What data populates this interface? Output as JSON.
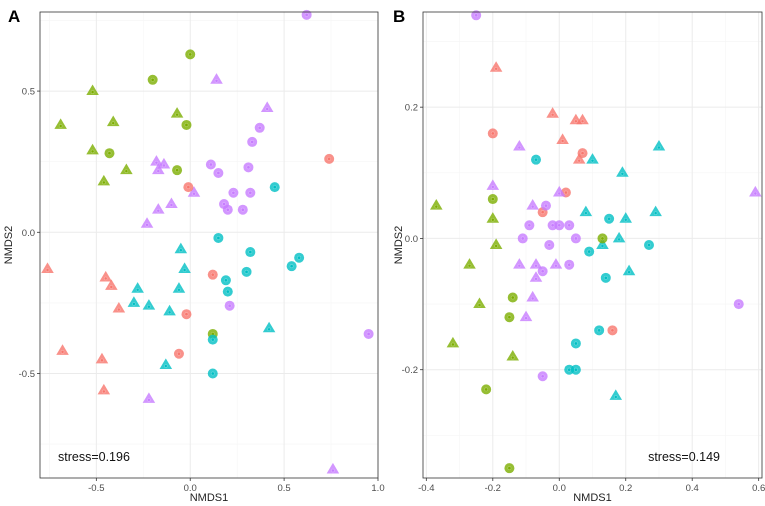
{
  "colors": {
    "red": "#F8766D",
    "green": "#7CAE00",
    "cyan": "#00BFC4",
    "purple": "#C77CFF"
  },
  "chart_data": [
    {
      "type": "scatter",
      "panel_label": "A",
      "xlabel": "NMDS1",
      "ylabel": "NMDS2",
      "xlim": [
        -0.8,
        1.0
      ],
      "ylim": [
        -0.87,
        0.78
      ],
      "xticks": [
        -0.5,
        0.0,
        0.5,
        1.0
      ],
      "xtick_labels": [
        "-0.5",
        "0.0",
        "0.5",
        "1.0"
      ],
      "yticks": [
        -0.5,
        0.0,
        0.5
      ],
      "ytick_labels": [
        "-0.5",
        "0.0",
        "0.5"
      ],
      "grid": true,
      "annotation": "stress=0.196",
      "annotation_position": "bottom-left",
      "points": [
        {
          "x": -0.52,
          "y": 0.5,
          "color": "green",
          "shape": "triangle"
        },
        {
          "x": -0.69,
          "y": 0.38,
          "color": "green",
          "shape": "triangle"
        },
        {
          "x": -0.52,
          "y": 0.29,
          "color": "green",
          "shape": "triangle"
        },
        {
          "x": -0.41,
          "y": 0.39,
          "color": "green",
          "shape": "triangle"
        },
        {
          "x": -0.46,
          "y": 0.18,
          "color": "green",
          "shape": "triangle"
        },
        {
          "x": -0.34,
          "y": 0.22,
          "color": "green",
          "shape": "triangle"
        },
        {
          "x": -0.07,
          "y": 0.42,
          "color": "green",
          "shape": "triangle"
        },
        {
          "x": -0.2,
          "y": 0.54,
          "color": "green",
          "shape": "circle"
        },
        {
          "x": 0.0,
          "y": 0.63,
          "color": "green",
          "shape": "circle"
        },
        {
          "x": -0.43,
          "y": 0.28,
          "color": "green",
          "shape": "circle"
        },
        {
          "x": -0.02,
          "y": 0.38,
          "color": "green",
          "shape": "circle"
        },
        {
          "x": -0.07,
          "y": 0.22,
          "color": "green",
          "shape": "circle"
        },
        {
          "x": 0.12,
          "y": -0.36,
          "color": "green",
          "shape": "circle"
        },
        {
          "x": 0.62,
          "y": 0.77,
          "color": "purple",
          "shape": "circle"
        },
        {
          "x": 0.14,
          "y": 0.54,
          "color": "purple",
          "shape": "triangle"
        },
        {
          "x": 0.41,
          "y": 0.44,
          "color": "purple",
          "shape": "triangle"
        },
        {
          "x": 0.37,
          "y": 0.37,
          "color": "purple",
          "shape": "circle"
        },
        {
          "x": 0.33,
          "y": 0.32,
          "color": "purple",
          "shape": "circle"
        },
        {
          "x": -0.18,
          "y": 0.25,
          "color": "purple",
          "shape": "triangle"
        },
        {
          "x": -0.14,
          "y": 0.24,
          "color": "purple",
          "shape": "triangle"
        },
        {
          "x": -0.17,
          "y": 0.22,
          "color": "purple",
          "shape": "triangle"
        },
        {
          "x": 0.11,
          "y": 0.24,
          "color": "purple",
          "shape": "circle"
        },
        {
          "x": 0.15,
          "y": 0.21,
          "color": "purple",
          "shape": "circle"
        },
        {
          "x": 0.31,
          "y": 0.23,
          "color": "purple",
          "shape": "circle"
        },
        {
          "x": 0.02,
          "y": 0.14,
          "color": "purple",
          "shape": "triangle"
        },
        {
          "x": -0.1,
          "y": 0.1,
          "color": "purple",
          "shape": "triangle"
        },
        {
          "x": -0.17,
          "y": 0.08,
          "color": "purple",
          "shape": "triangle"
        },
        {
          "x": 0.23,
          "y": 0.14,
          "color": "purple",
          "shape": "circle"
        },
        {
          "x": 0.32,
          "y": 0.14,
          "color": "purple",
          "shape": "circle"
        },
        {
          "x": 0.18,
          "y": 0.1,
          "color": "purple",
          "shape": "circle"
        },
        {
          "x": 0.2,
          "y": 0.08,
          "color": "purple",
          "shape": "circle"
        },
        {
          "x": 0.28,
          "y": 0.08,
          "color": "purple",
          "shape": "circle"
        },
        {
          "x": -0.23,
          "y": 0.03,
          "color": "purple",
          "shape": "triangle"
        },
        {
          "x": 0.21,
          "y": -0.26,
          "color": "purple",
          "shape": "circle"
        },
        {
          "x": -0.22,
          "y": -0.59,
          "color": "purple",
          "shape": "triangle"
        },
        {
          "x": 0.76,
          "y": -0.84,
          "color": "purple",
          "shape": "triangle"
        },
        {
          "x": 0.95,
          "y": -0.36,
          "color": "purple",
          "shape": "circle"
        },
        {
          "x": -0.76,
          "y": -0.13,
          "color": "red",
          "shape": "triangle"
        },
        {
          "x": -0.45,
          "y": -0.16,
          "color": "red",
          "shape": "triangle"
        },
        {
          "x": -0.42,
          "y": -0.19,
          "color": "red",
          "shape": "triangle"
        },
        {
          "x": -0.38,
          "y": -0.27,
          "color": "red",
          "shape": "triangle"
        },
        {
          "x": -0.68,
          "y": -0.42,
          "color": "red",
          "shape": "triangle"
        },
        {
          "x": -0.47,
          "y": -0.45,
          "color": "red",
          "shape": "triangle"
        },
        {
          "x": -0.46,
          "y": -0.56,
          "color": "red",
          "shape": "triangle"
        },
        {
          "x": -0.01,
          "y": 0.16,
          "color": "red",
          "shape": "circle"
        },
        {
          "x": 0.12,
          "y": -0.15,
          "color": "red",
          "shape": "circle"
        },
        {
          "x": -0.02,
          "y": -0.29,
          "color": "red",
          "shape": "circle"
        },
        {
          "x": -0.06,
          "y": -0.43,
          "color": "red",
          "shape": "circle"
        },
        {
          "x": 0.74,
          "y": 0.26,
          "color": "red",
          "shape": "circle"
        },
        {
          "x": 0.45,
          "y": 0.16,
          "color": "cyan",
          "shape": "circle"
        },
        {
          "x": 0.15,
          "y": -0.02,
          "color": "cyan",
          "shape": "circle"
        },
        {
          "x": 0.32,
          "y": -0.07,
          "color": "cyan",
          "shape": "circle"
        },
        {
          "x": 0.58,
          "y": -0.09,
          "color": "cyan",
          "shape": "circle"
        },
        {
          "x": 0.54,
          "y": -0.12,
          "color": "cyan",
          "shape": "circle"
        },
        {
          "x": 0.19,
          "y": -0.17,
          "color": "cyan",
          "shape": "circle"
        },
        {
          "x": 0.3,
          "y": -0.14,
          "color": "cyan",
          "shape": "circle"
        },
        {
          "x": 0.2,
          "y": -0.21,
          "color": "cyan",
          "shape": "circle"
        },
        {
          "x": 0.12,
          "y": -0.38,
          "color": "cyan",
          "shape": "circle"
        },
        {
          "x": 0.12,
          "y": -0.5,
          "color": "cyan",
          "shape": "circle"
        },
        {
          "x": -0.05,
          "y": -0.06,
          "color": "cyan",
          "shape": "triangle"
        },
        {
          "x": -0.03,
          "y": -0.13,
          "color": "cyan",
          "shape": "triangle"
        },
        {
          "x": -0.28,
          "y": -0.2,
          "color": "cyan",
          "shape": "triangle"
        },
        {
          "x": -0.06,
          "y": -0.2,
          "color": "cyan",
          "shape": "triangle"
        },
        {
          "x": -0.3,
          "y": -0.25,
          "color": "cyan",
          "shape": "triangle"
        },
        {
          "x": -0.22,
          "y": -0.26,
          "color": "cyan",
          "shape": "triangle"
        },
        {
          "x": -0.11,
          "y": -0.28,
          "color": "cyan",
          "shape": "triangle"
        },
        {
          "x": -0.13,
          "y": -0.47,
          "color": "cyan",
          "shape": "triangle"
        },
        {
          "x": 0.42,
          "y": -0.34,
          "color": "cyan",
          "shape": "triangle"
        }
      ]
    },
    {
      "type": "scatter",
      "panel_label": "B",
      "xlabel": "NMDS1",
      "ylabel": "NMDS2",
      "xlim": [
        -0.41,
        0.61
      ],
      "ylim": [
        -0.365,
        0.345
      ],
      "xticks": [
        -0.4,
        -0.2,
        0.0,
        0.2,
        0.4,
        0.6
      ],
      "xtick_labels": [
        "-0.4",
        "-0.2",
        "0.0",
        "0.2",
        "0.4",
        "0.6"
      ],
      "yticks": [
        -0.2,
        0.0,
        0.2
      ],
      "ytick_labels": [
        "-0.2",
        "0.0",
        "0.2"
      ],
      "grid": true,
      "annotation": "stress=0.149",
      "annotation_position": "bottom-right",
      "points": [
        {
          "x": -0.25,
          "y": 0.34,
          "color": "purple",
          "shape": "circle"
        },
        {
          "x": -0.19,
          "y": 0.26,
          "color": "red",
          "shape": "triangle"
        },
        {
          "x": -0.2,
          "y": 0.16,
          "color": "red",
          "shape": "circle"
        },
        {
          "x": -0.02,
          "y": 0.19,
          "color": "red",
          "shape": "triangle"
        },
        {
          "x": 0.05,
          "y": 0.18,
          "color": "red",
          "shape": "triangle"
        },
        {
          "x": 0.07,
          "y": 0.18,
          "color": "red",
          "shape": "triangle"
        },
        {
          "x": 0.01,
          "y": 0.15,
          "color": "red",
          "shape": "triangle"
        },
        {
          "x": 0.07,
          "y": 0.13,
          "color": "red",
          "shape": "circle"
        },
        {
          "x": 0.06,
          "y": 0.12,
          "color": "red",
          "shape": "triangle"
        },
        {
          "x": 0.02,
          "y": 0.07,
          "color": "red",
          "shape": "circle"
        },
        {
          "x": -0.05,
          "y": 0.04,
          "color": "red",
          "shape": "circle"
        },
        {
          "x": 0.16,
          "y": -0.14,
          "color": "red",
          "shape": "circle"
        },
        {
          "x": 0.3,
          "y": 0.14,
          "color": "cyan",
          "shape": "triangle"
        },
        {
          "x": -0.07,
          "y": 0.12,
          "color": "cyan",
          "shape": "circle"
        },
        {
          "x": 0.1,
          "y": 0.12,
          "color": "cyan",
          "shape": "triangle"
        },
        {
          "x": 0.19,
          "y": 0.1,
          "color": "cyan",
          "shape": "triangle"
        },
        {
          "x": 0.08,
          "y": 0.04,
          "color": "cyan",
          "shape": "triangle"
        },
        {
          "x": 0.15,
          "y": 0.03,
          "color": "cyan",
          "shape": "circle"
        },
        {
          "x": 0.2,
          "y": 0.03,
          "color": "cyan",
          "shape": "triangle"
        },
        {
          "x": 0.29,
          "y": 0.04,
          "color": "cyan",
          "shape": "triangle"
        },
        {
          "x": 0.13,
          "y": -0.01,
          "color": "cyan",
          "shape": "triangle"
        },
        {
          "x": 0.18,
          "y": 0.0,
          "color": "cyan",
          "shape": "triangle"
        },
        {
          "x": 0.27,
          "y": -0.01,
          "color": "cyan",
          "shape": "circle"
        },
        {
          "x": 0.09,
          "y": -0.02,
          "color": "cyan",
          "shape": "circle"
        },
        {
          "x": 0.14,
          "y": -0.06,
          "color": "cyan",
          "shape": "circle"
        },
        {
          "x": 0.21,
          "y": -0.05,
          "color": "cyan",
          "shape": "triangle"
        },
        {
          "x": 0.12,
          "y": -0.14,
          "color": "cyan",
          "shape": "circle"
        },
        {
          "x": 0.05,
          "y": -0.16,
          "color": "cyan",
          "shape": "circle"
        },
        {
          "x": 0.03,
          "y": -0.2,
          "color": "cyan",
          "shape": "circle"
        },
        {
          "x": 0.05,
          "y": -0.2,
          "color": "cyan",
          "shape": "circle"
        },
        {
          "x": 0.17,
          "y": -0.24,
          "color": "cyan",
          "shape": "triangle"
        },
        {
          "x": -0.37,
          "y": 0.05,
          "color": "green",
          "shape": "triangle"
        },
        {
          "x": -0.2,
          "y": 0.06,
          "color": "green",
          "shape": "circle"
        },
        {
          "x": -0.2,
          "y": 0.03,
          "color": "green",
          "shape": "triangle"
        },
        {
          "x": -0.19,
          "y": -0.01,
          "color": "green",
          "shape": "triangle"
        },
        {
          "x": -0.27,
          "y": -0.04,
          "color": "green",
          "shape": "triangle"
        },
        {
          "x": -0.24,
          "y": -0.1,
          "color": "green",
          "shape": "triangle"
        },
        {
          "x": -0.32,
          "y": -0.16,
          "color": "green",
          "shape": "triangle"
        },
        {
          "x": -0.14,
          "y": -0.09,
          "color": "green",
          "shape": "circle"
        },
        {
          "x": -0.15,
          "y": -0.12,
          "color": "green",
          "shape": "circle"
        },
        {
          "x": -0.14,
          "y": -0.18,
          "color": "green",
          "shape": "triangle"
        },
        {
          "x": -0.22,
          "y": -0.23,
          "color": "green",
          "shape": "circle"
        },
        {
          "x": -0.15,
          "y": -0.35,
          "color": "green",
          "shape": "circle"
        },
        {
          "x": 0.13,
          "y": 0.0,
          "color": "green",
          "shape": "circle"
        },
        {
          "x": -0.12,
          "y": 0.14,
          "color": "purple",
          "shape": "triangle"
        },
        {
          "x": -0.2,
          "y": 0.08,
          "color": "purple",
          "shape": "triangle"
        },
        {
          "x": 0.0,
          "y": 0.07,
          "color": "purple",
          "shape": "triangle"
        },
        {
          "x": -0.08,
          "y": 0.05,
          "color": "purple",
          "shape": "triangle"
        },
        {
          "x": -0.04,
          "y": 0.05,
          "color": "purple",
          "shape": "circle"
        },
        {
          "x": -0.09,
          "y": 0.02,
          "color": "purple",
          "shape": "circle"
        },
        {
          "x": -0.02,
          "y": 0.02,
          "color": "purple",
          "shape": "circle"
        },
        {
          "x": 0.0,
          "y": 0.02,
          "color": "purple",
          "shape": "circle"
        },
        {
          "x": 0.03,
          "y": 0.02,
          "color": "purple",
          "shape": "circle"
        },
        {
          "x": -0.11,
          "y": 0.0,
          "color": "purple",
          "shape": "circle"
        },
        {
          "x": 0.05,
          "y": 0.0,
          "color": "purple",
          "shape": "circle"
        },
        {
          "x": -0.03,
          "y": -0.01,
          "color": "purple",
          "shape": "circle"
        },
        {
          "x": -0.12,
          "y": -0.04,
          "color": "purple",
          "shape": "triangle"
        },
        {
          "x": -0.07,
          "y": -0.04,
          "color": "purple",
          "shape": "triangle"
        },
        {
          "x": -0.01,
          "y": -0.04,
          "color": "purple",
          "shape": "triangle"
        },
        {
          "x": -0.05,
          "y": -0.05,
          "color": "purple",
          "shape": "circle"
        },
        {
          "x": 0.03,
          "y": -0.04,
          "color": "purple",
          "shape": "circle"
        },
        {
          "x": -0.07,
          "y": -0.06,
          "color": "purple",
          "shape": "triangle"
        },
        {
          "x": -0.08,
          "y": -0.09,
          "color": "purple",
          "shape": "triangle"
        },
        {
          "x": -0.1,
          "y": -0.12,
          "color": "purple",
          "shape": "triangle"
        },
        {
          "x": -0.05,
          "y": -0.21,
          "color": "purple",
          "shape": "circle"
        },
        {
          "x": 0.59,
          "y": 0.07,
          "color": "purple",
          "shape": "triangle"
        },
        {
          "x": 0.54,
          "y": -0.1,
          "color": "purple",
          "shape": "circle"
        }
      ]
    }
  ]
}
